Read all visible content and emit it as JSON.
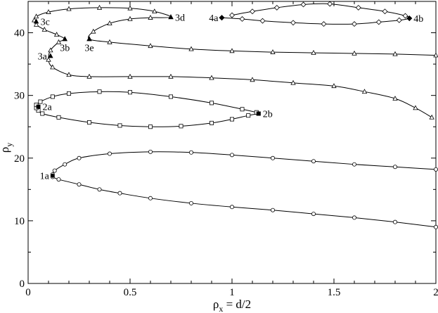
{
  "chart_data": {
    "type": "line",
    "title": "",
    "xlabel_main": "ρ",
    "xlabel_sub": "x",
    "xlabel_rest": " = d/2",
    "ylabel_main": "ρ",
    "ylabel_sub": "y",
    "xlim": [
      0,
      2
    ],
    "ylim": [
      0,
      45
    ],
    "xticks": [
      0,
      0.5,
      1,
      1.5,
      2
    ],
    "xtick_labels": [
      "0",
      "0.5",
      "1",
      "1.5",
      "2"
    ],
    "yticks": [
      0,
      10,
      20,
      30,
      40
    ],
    "ytick_labels": [
      "0",
      "10",
      "20",
      "30",
      "40"
    ],
    "grid": false,
    "series": [
      {
        "marker": "circle",
        "points": [
          [
            2.0,
            9.0
          ],
          [
            1.8,
            9.8
          ],
          [
            1.6,
            10.5
          ],
          [
            1.4,
            11.1
          ],
          [
            1.2,
            11.7
          ],
          [
            1.0,
            12.2
          ],
          [
            0.8,
            12.8
          ],
          [
            0.6,
            13.6
          ],
          [
            0.45,
            14.4
          ],
          [
            0.35,
            15.0
          ],
          [
            0.25,
            15.8
          ],
          [
            0.15,
            16.6
          ],
          [
            0.12,
            17.0
          ],
          [
            0.12,
            17.4
          ],
          [
            0.13,
            18.0
          ],
          [
            0.18,
            19.0
          ],
          [
            0.25,
            20.0
          ],
          [
            0.4,
            20.7
          ],
          [
            0.6,
            21.0
          ],
          [
            0.8,
            20.9
          ],
          [
            1.0,
            20.5
          ],
          [
            1.2,
            20.0
          ],
          [
            1.4,
            19.5
          ],
          [
            1.6,
            19.0
          ],
          [
            1.8,
            18.6
          ],
          [
            2.0,
            18.2
          ]
        ]
      },
      {
        "marker": "square",
        "points": [
          [
            1.13,
            27.1
          ],
          [
            1.08,
            26.8
          ],
          [
            1.0,
            26.2
          ],
          [
            0.9,
            25.6
          ],
          [
            0.75,
            25.1
          ],
          [
            0.6,
            25.0
          ],
          [
            0.45,
            25.2
          ],
          [
            0.3,
            25.7
          ],
          [
            0.15,
            26.5
          ],
          [
            0.07,
            27.1
          ],
          [
            0.05,
            27.6
          ],
          [
            0.04,
            28.0
          ],
          [
            0.04,
            28.5
          ],
          [
            0.06,
            29.0
          ],
          [
            0.12,
            29.8
          ],
          [
            0.2,
            30.3
          ],
          [
            0.35,
            30.6
          ],
          [
            0.5,
            30.5
          ],
          [
            0.7,
            29.8
          ],
          [
            0.9,
            28.8
          ],
          [
            1.05,
            27.8
          ],
          [
            1.12,
            27.3
          ]
        ]
      },
      {
        "marker": "triangle",
        "points": [
          [
            1.98,
            26.5
          ],
          [
            1.9,
            28.0
          ],
          [
            1.8,
            29.5
          ],
          [
            1.65,
            30.6
          ],
          [
            1.5,
            31.5
          ],
          [
            1.3,
            32.0
          ],
          [
            1.1,
            32.5
          ],
          [
            0.9,
            32.8
          ],
          [
            0.7,
            33.0
          ],
          [
            0.5,
            33.0
          ],
          [
            0.3,
            33.0
          ],
          [
            0.2,
            33.3
          ],
          [
            0.12,
            34.5
          ],
          [
            0.1,
            35.7
          ],
          [
            0.11,
            37.2
          ],
          [
            0.15,
            38.5
          ],
          [
            0.18,
            39.0
          ],
          [
            0.14,
            39.7
          ],
          [
            0.08,
            40.5
          ],
          [
            0.04,
            41.3
          ],
          [
            0.03,
            42.0
          ],
          [
            0.04,
            42.6
          ],
          [
            0.1,
            43.3
          ],
          [
            0.2,
            43.8
          ],
          [
            0.35,
            44.0
          ],
          [
            0.5,
            43.9
          ],
          [
            0.62,
            43.4
          ],
          [
            0.7,
            42.5
          ],
          [
            0.6,
            42.4
          ],
          [
            0.5,
            42.2
          ],
          [
            0.4,
            41.5
          ],
          [
            0.32,
            40.2
          ],
          [
            0.3,
            39.0
          ],
          [
            0.4,
            38.5
          ],
          [
            0.6,
            37.9
          ],
          [
            0.8,
            37.4
          ],
          [
            1.0,
            37.1
          ],
          [
            1.2,
            36.9
          ],
          [
            1.4,
            36.8
          ],
          [
            1.6,
            36.7
          ],
          [
            1.8,
            36.6
          ],
          [
            2.0,
            36.4
          ]
        ]
      },
      {
        "marker": "diamond",
        "points": [
          [
            0.95,
            42.4
          ],
          [
            1.05,
            42.2
          ],
          [
            1.15,
            41.9
          ],
          [
            1.3,
            41.6
          ],
          [
            1.45,
            41.4
          ],
          [
            1.6,
            41.4
          ],
          [
            1.72,
            41.7
          ],
          [
            1.82,
            42.0
          ],
          [
            1.87,
            42.3
          ],
          [
            1.85,
            42.7
          ],
          [
            1.75,
            43.4
          ],
          [
            1.62,
            44.0
          ],
          [
            1.48,
            44.6
          ],
          [
            1.35,
            44.5
          ],
          [
            1.22,
            44.0
          ],
          [
            1.1,
            43.4
          ],
          [
            1.0,
            42.8
          ]
        ]
      }
    ],
    "annotations": [
      {
        "text": "1a",
        "x": 0.12,
        "y": 17.2,
        "anchor": "end"
      },
      {
        "text": "2a",
        "x": 0.05,
        "y": 28.2,
        "anchor": "start"
      },
      {
        "text": "2b",
        "x": 1.13,
        "y": 27.1,
        "anchor": "start"
      },
      {
        "text": "3a",
        "x": 0.11,
        "y": 36.3,
        "anchor": "end"
      },
      {
        "text": "3b",
        "x": 0.18,
        "y": 39.0,
        "anchor": "mid"
      },
      {
        "text": "3c",
        "x": 0.04,
        "y": 41.8,
        "anchor": "start"
      },
      {
        "text": "3d",
        "x": 0.7,
        "y": 42.5,
        "anchor": "start"
      },
      {
        "text": "3e",
        "x": 0.3,
        "y": 39.0,
        "anchor": "mid"
      },
      {
        "text": "4a",
        "x": 0.95,
        "y": 42.4,
        "anchor": "end"
      },
      {
        "text": "4b",
        "x": 1.87,
        "y": 42.3,
        "anchor": "start"
      }
    ]
  }
}
